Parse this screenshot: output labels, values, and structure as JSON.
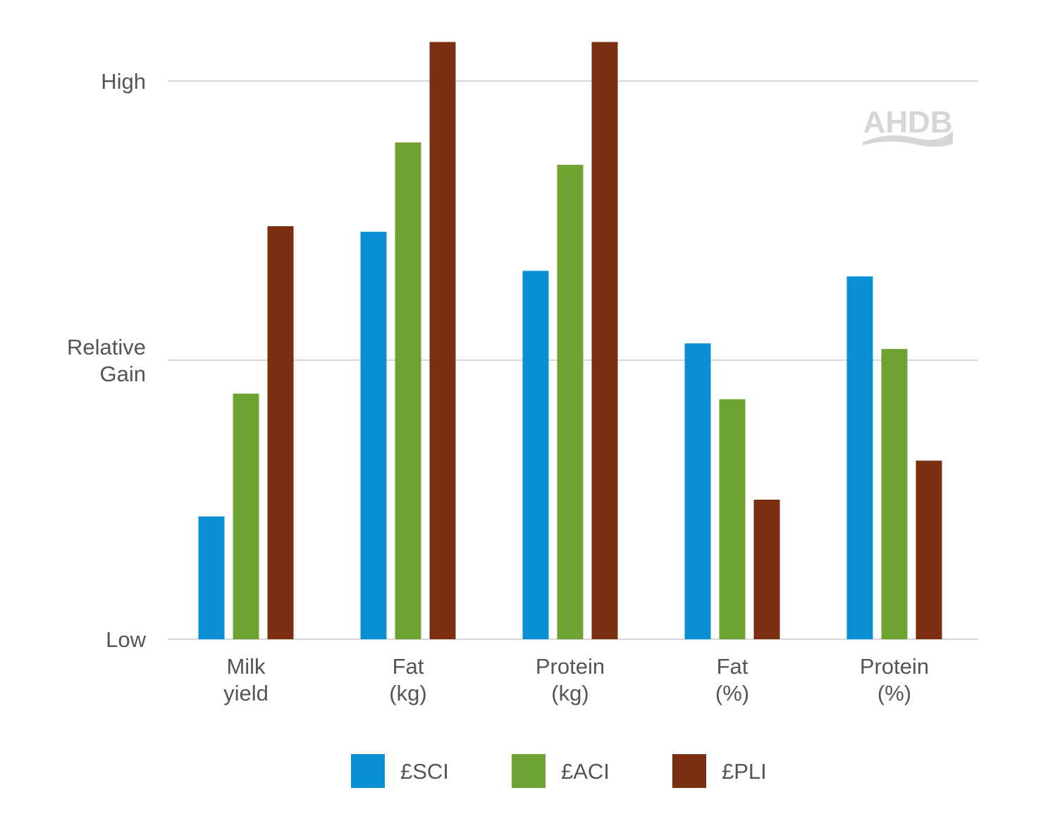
{
  "chart_data": {
    "type": "bar",
    "title": "",
    "xlabel": "",
    "ylabel": "",
    "ylim": [
      0,
      100
    ],
    "y_ticks": [
      {
        "value": 0,
        "lines": [
          "Low"
        ]
      },
      {
        "value": 50,
        "lines": [
          "Relative",
          "Gain"
        ]
      },
      {
        "value": 100,
        "lines": [
          "High"
        ]
      }
    ],
    "categories": [
      [
        "Milk",
        "yield"
      ],
      [
        "Fat",
        "(kg)"
      ],
      [
        "Protein",
        "(kg)"
      ],
      [
        "Fat",
        "(%)"
      ],
      [
        "Protein",
        "(%)"
      ]
    ],
    "series": [
      {
        "name": "£SCI",
        "color": "#0a8fd4",
        "values": [
          22,
          73,
          66,
          53,
          65
        ]
      },
      {
        "name": "£ACI",
        "color": "#6fa331",
        "values": [
          44,
          89,
          85,
          43,
          52
        ]
      },
      {
        "name": "£PLI",
        "color": "#7b2f11",
        "values": [
          74,
          107,
          107,
          25,
          32
        ]
      }
    ],
    "grid": true,
    "legend": "bottom-center"
  },
  "logo": {
    "text": "AHDB"
  }
}
